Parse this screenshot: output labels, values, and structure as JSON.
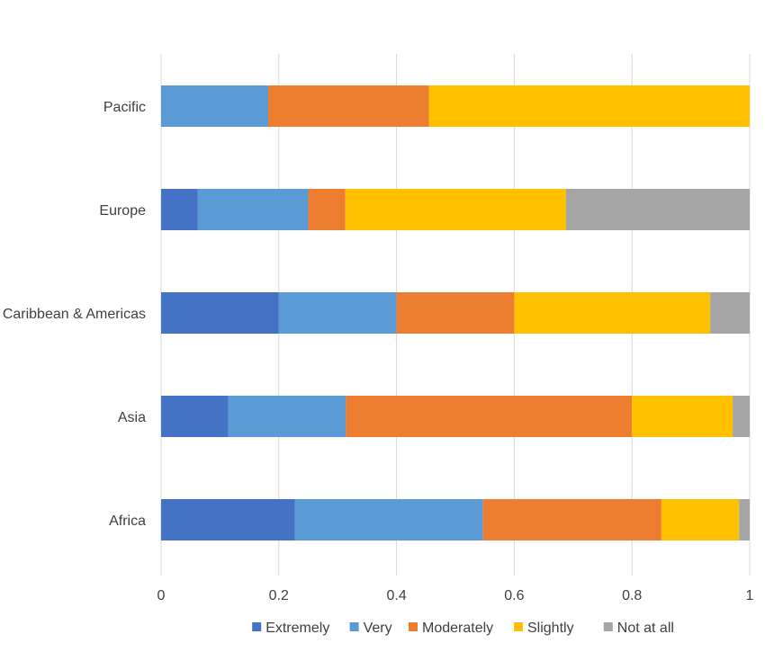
{
  "chart_data": {
    "type": "bar",
    "orientation": "horizontal",
    "stacked": true,
    "title": "",
    "xlabel": "",
    "ylabel": "",
    "xlim": [
      0,
      1
    ],
    "x_ticks": [
      0,
      0.2,
      0.4,
      0.6,
      0.8,
      1
    ],
    "x_tick_labels": [
      "0",
      "0.2",
      "0.4",
      "0.6",
      "0.8",
      "1"
    ],
    "grid": "vertical",
    "legend_position": "bottom",
    "categories": [
      "Pacific",
      "Europe",
      "Caribbean & Americas",
      "Asia",
      "Africa"
    ],
    "series": [
      {
        "name": "Extremely",
        "color": "#4472C4",
        "values": [
          0.0,
          0.062,
          0.2,
          0.114,
          0.227
        ]
      },
      {
        "name": "Very",
        "color": "#5B9BD5",
        "values": [
          0.182,
          0.188,
          0.2,
          0.2,
          0.32
        ]
      },
      {
        "name": "Moderately",
        "color": "#ED7D31",
        "values": [
          0.273,
          0.063,
          0.2,
          0.486,
          0.303
        ]
      },
      {
        "name": "Slightly",
        "color": "#FFC000",
        "values": [
          0.545,
          0.375,
          0.333,
          0.171,
          0.132
        ]
      },
      {
        "name": "Not at all",
        "color": "#A5A5A5",
        "values": [
          0.0,
          0.312,
          0.067,
          0.029,
          0.018
        ]
      }
    ]
  }
}
